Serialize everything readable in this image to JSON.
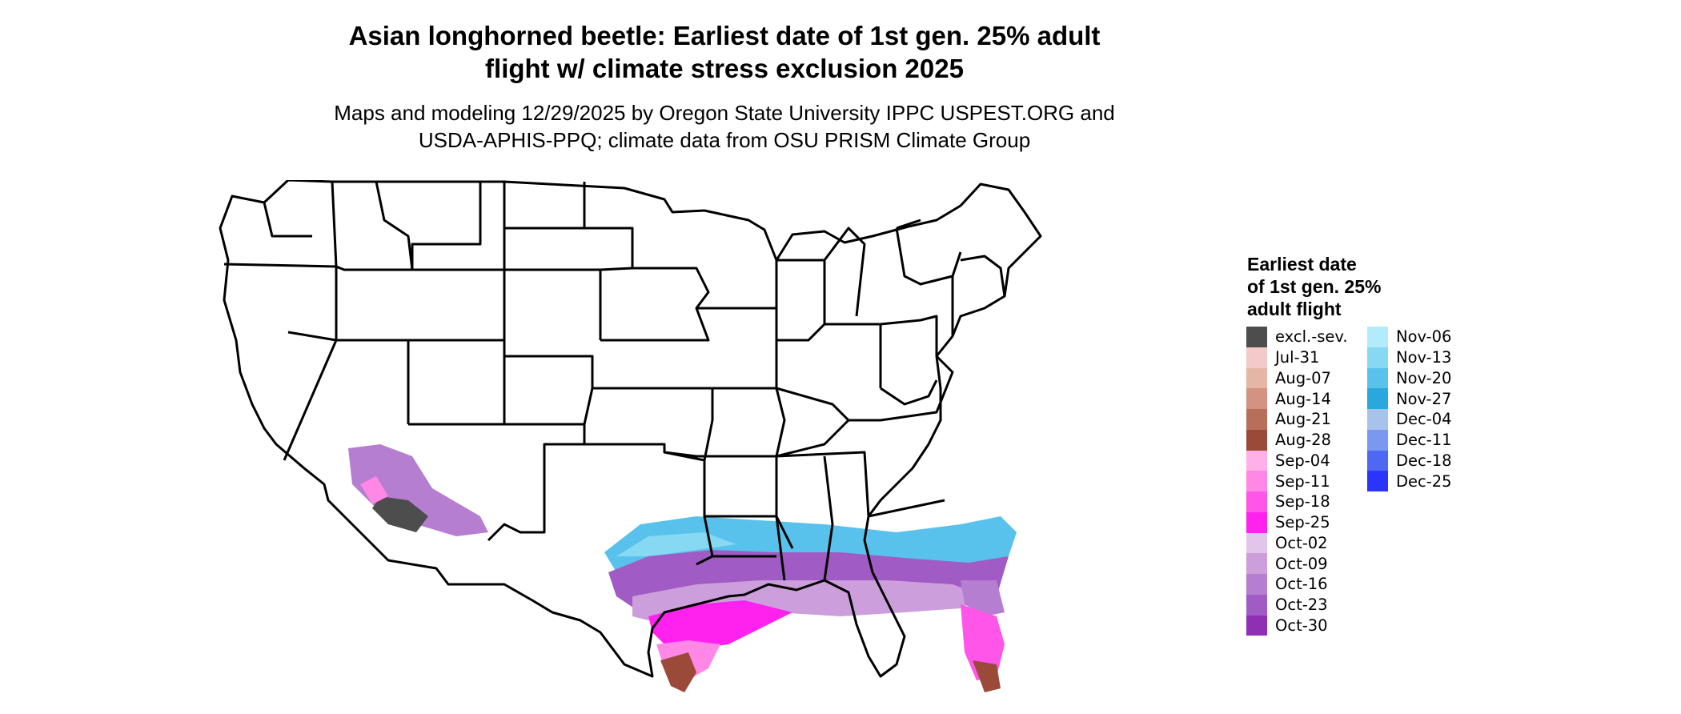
{
  "title_lines": [
    "Asian longhorned beetle: Earliest date of 1st gen. 25% adult",
    "flight w/ climate stress exclusion 2025"
  ],
  "subtitle_lines": [
    "Maps and modeling 12/29/2025 by Oregon State University IPPC USPEST.ORG and",
    "USDA-APHIS-PPQ; climate data from OSU PRISM Climate Group"
  ],
  "legend": {
    "title_lines": [
      "Earliest date",
      "of 1st gen. 25%",
      "adult flight"
    ],
    "col1": [
      {
        "label": "excl.-sev.",
        "color": "#4d4d4d"
      },
      {
        "label": "Jul-31",
        "color": "#f4c9c9"
      },
      {
        "label": "Aug-07",
        "color": "#e5b5a6"
      },
      {
        "label": "Aug-14",
        "color": "#d39282"
      },
      {
        "label": "Aug-21",
        "color": "#b86f5a"
      },
      {
        "label": "Aug-28",
        "color": "#9b4a3a"
      },
      {
        "label": "Sep-04",
        "color": "#ffb0e8"
      },
      {
        "label": "Sep-11",
        "color": "#ff88e6"
      },
      {
        "label": "Sep-18",
        "color": "#ff55e8"
      },
      {
        "label": "Sep-25",
        "color": "#ff22ee"
      },
      {
        "label": "Oct-02",
        "color": "#e3c5e9"
      },
      {
        "label": "Oct-09",
        "color": "#cc9fdc"
      },
      {
        "label": "Oct-16",
        "color": "#b57ed0"
      },
      {
        "label": "Oct-23",
        "color": "#a05bc4"
      },
      {
        "label": "Oct-30",
        "color": "#8e2fb4"
      }
    ],
    "col2": [
      {
        "label": "Nov-06",
        "color": "#b2ecfb"
      },
      {
        "label": "Nov-13",
        "color": "#86d8f3"
      },
      {
        "label": "Nov-20",
        "color": "#59c2ec"
      },
      {
        "label": "Nov-27",
        "color": "#2aa8de"
      },
      {
        "label": "Dec-04",
        "color": "#a7c3ec"
      },
      {
        "label": "Dec-11",
        "color": "#7b98f0"
      },
      {
        "label": "Dec-18",
        "color": "#4f68f3"
      },
      {
        "label": "Dec-25",
        "color": "#2b34fb"
      }
    ]
  }
}
